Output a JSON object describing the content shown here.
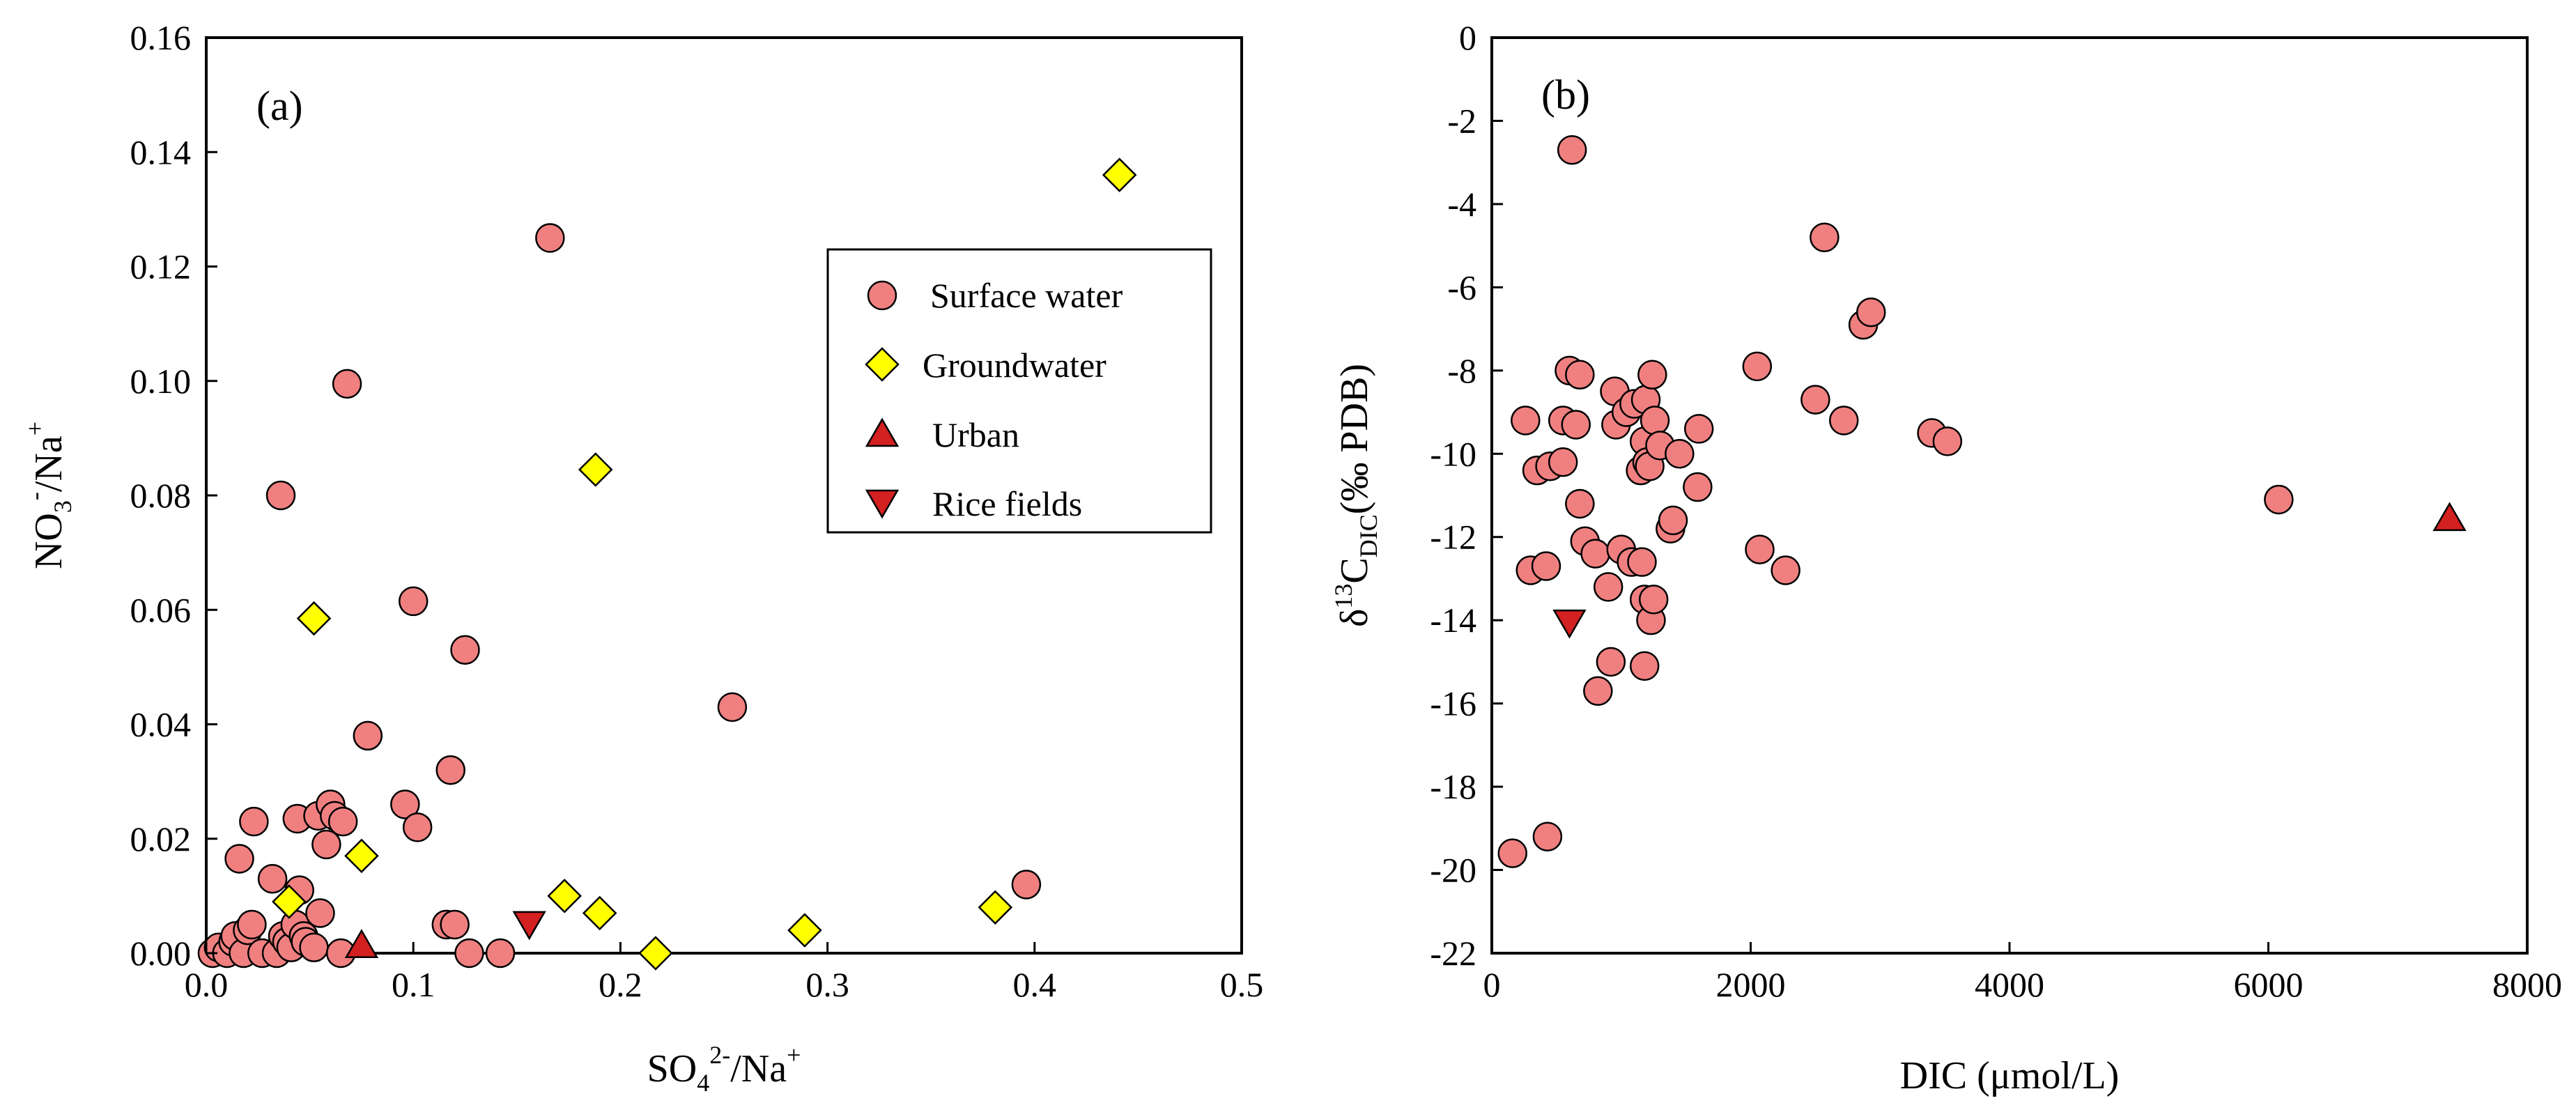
{
  "colors": {
    "surface": "#F08080",
    "groundwater": "#FFFF00",
    "urban": "#D32020",
    "rice": "#D32020",
    "stroke": "#000000"
  },
  "chart_data": [
    {
      "type": "scatter",
      "panel_label": "(a)",
      "xlabel": "SO₄²⁻/Na⁺",
      "ylabel": "NO₃⁻/Na⁺",
      "xlabel_parts": {
        "a": "SO",
        "b": "4",
        "c": "2-",
        "d": "/Na",
        "e": "+"
      },
      "ylabel_parts": {
        "a": "NO",
        "b": "3",
        "c": "-",
        "d": "/Na",
        "e": "+"
      },
      "xlim": [
        0,
        0.5
      ],
      "ylim": [
        0,
        0.16
      ],
      "x_ticks": [
        "0.0",
        "0.1",
        "0.2",
        "0.3",
        "0.4",
        "0.5"
      ],
      "y_ticks": [
        "0.00",
        "0.02",
        "0.04",
        "0.06",
        "0.08",
        "0.10",
        "0.12",
        "0.14",
        "0.16"
      ],
      "legend": {
        "placement": "upper-right",
        "entries": [
          {
            "label": "Surface water",
            "series": "surface",
            "marker": "circle"
          },
          {
            "label": "Groundwater",
            "series": "groundwater",
            "marker": "diamond"
          },
          {
            "label": "Urban",
            "series": "urban",
            "marker": "triangle-up"
          },
          {
            "label": "Rice fields",
            "series": "rice",
            "marker": "triangle-down"
          }
        ]
      },
      "series": [
        {
          "name": "Surface water",
          "key": "surface",
          "marker": "circle",
          "points": [
            [
              0.003,
              0.0
            ],
            [
              0.006,
              0.001
            ],
            [
              0.01,
              0.0
            ],
            [
              0.013,
              0.002
            ],
            [
              0.014,
              0.003
            ],
            [
              0.016,
              0.0165
            ],
            [
              0.018,
              0.0
            ],
            [
              0.02,
              0.004
            ],
            [
              0.022,
              0.005
            ],
            [
              0.023,
              0.023
            ],
            [
              0.027,
              0.0
            ],
            [
              0.032,
              0.013
            ],
            [
              0.034,
              0.0
            ],
            [
              0.036,
              0.08
            ],
            [
              0.037,
              0.003
            ],
            [
              0.039,
              0.002
            ],
            [
              0.041,
              0.001
            ],
            [
              0.043,
              0.005
            ],
            [
              0.044,
              0.0235
            ],
            [
              0.045,
              0.011
            ],
            [
              0.047,
              0.003
            ],
            [
              0.048,
              0.002
            ],
            [
              0.052,
              0.001
            ],
            [
              0.054,
              0.024
            ],
            [
              0.055,
              0.007
            ],
            [
              0.058,
              0.019
            ],
            [
              0.06,
              0.026
            ],
            [
              0.062,
              0.024
            ],
            [
              0.065,
              0.0
            ],
            [
              0.066,
              0.023
            ],
            [
              0.068,
              0.0995
            ],
            [
              0.078,
              0.038
            ],
            [
              0.096,
              0.026
            ],
            [
              0.1,
              0.0615
            ],
            [
              0.102,
              0.022
            ],
            [
              0.116,
              0.005
            ],
            [
              0.118,
              0.032
            ],
            [
              0.12,
              0.005
            ],
            [
              0.125,
              0.053
            ],
            [
              0.127,
              0.0
            ],
            [
              0.142,
              0.0
            ],
            [
              0.166,
              0.125
            ],
            [
              0.254,
              0.043
            ],
            [
              0.396,
              0.012
            ]
          ]
        },
        {
          "name": "Groundwater",
          "key": "groundwater",
          "marker": "diamond",
          "points": [
            [
              0.04,
              0.009
            ],
            [
              0.052,
              0.0585
            ],
            [
              0.075,
              0.017
            ],
            [
              0.173,
              0.01
            ],
            [
              0.188,
              0.0845
            ],
            [
              0.19,
              0.007
            ],
            [
              0.217,
              0.0
            ],
            [
              0.289,
              0.004
            ],
            [
              0.381,
              0.008
            ],
            [
              0.441,
              0.136
            ]
          ]
        },
        {
          "name": "Urban",
          "key": "urban",
          "marker": "triangle-up",
          "points": [
            [
              0.075,
              0.001
            ]
          ]
        },
        {
          "name": "Rice fields",
          "key": "rice",
          "marker": "triangle-down",
          "points": [
            [
              0.156,
              0.0055
            ]
          ]
        }
      ]
    },
    {
      "type": "scatter",
      "panel_label": "(b)",
      "xlabel": "DIC (μmol/L)",
      "ylabel": "δ¹³C_DIC(‰ PDB)",
      "ylabel_parts": {
        "a": "δ",
        "b": "13",
        "c": "C",
        "d": "DIC",
        "e": "(‰ PDB)"
      },
      "xlim": [
        0,
        8000
      ],
      "ylim": [
        -22,
        0
      ],
      "x_ticks": [
        "0",
        "2000",
        "4000",
        "6000",
        "8000"
      ],
      "y_ticks": [
        "-22",
        "-20",
        "-18",
        "-16",
        "-14",
        "-12",
        "-10",
        "-8",
        "-6",
        "-4",
        "-2",
        "0"
      ],
      "series": [
        {
          "name": "Surface water",
          "key": "surface",
          "marker": "circle",
          "points": [
            [
              160,
              -19.6
            ],
            [
              430,
              -19.2
            ],
            [
              260,
              -9.2
            ],
            [
              300,
              -12.8
            ],
            [
              350,
              -10.4
            ],
            [
              420,
              -12.7
            ],
            [
              450,
              -10.3
            ],
            [
              550,
              -9.2
            ],
            [
              550,
              -10.2
            ],
            [
              600,
              -8.0
            ],
            [
              620,
              -2.7
            ],
            [
              650,
              -9.3
            ],
            [
              680,
              -8.1
            ],
            [
              680,
              -11.2
            ],
            [
              720,
              -12.1
            ],
            [
              800,
              -12.4
            ],
            [
              820,
              -15.7
            ],
            [
              900,
              -13.2
            ],
            [
              920,
              -15.0
            ],
            [
              950,
              -8.5
            ],
            [
              960,
              -9.3
            ],
            [
              1000,
              -12.3
            ],
            [
              1040,
              -9.0
            ],
            [
              1080,
              -12.6
            ],
            [
              1100,
              -8.8
            ],
            [
              1150,
              -10.4
            ],
            [
              1160,
              -12.6
            ],
            [
              1180,
              -13.5
            ],
            [
              1180,
              -15.1
            ],
            [
              1180,
              -9.7
            ],
            [
              1190,
              -8.7
            ],
            [
              1200,
              -10.2
            ],
            [
              1220,
              -10.3
            ],
            [
              1230,
              -14.0
            ],
            [
              1240,
              -8.1
            ],
            [
              1250,
              -13.5
            ],
            [
              1260,
              -9.2
            ],
            [
              1300,
              -9.8
            ],
            [
              1380,
              -11.8
            ],
            [
              1400,
              -11.6
            ],
            [
              1450,
              -10.0
            ],
            [
              1590,
              -10.8
            ],
            [
              1600,
              -9.4
            ],
            [
              2050,
              -7.9
            ],
            [
              2070,
              -12.3
            ],
            [
              2270,
              -12.8
            ],
            [
              2500,
              -8.7
            ],
            [
              2570,
              -4.8
            ],
            [
              2720,
              -9.2
            ],
            [
              2870,
              -6.9
            ],
            [
              2930,
              -6.6
            ],
            [
              3400,
              -9.5
            ],
            [
              3520,
              -9.7
            ],
            [
              6080,
              -11.1
            ]
          ]
        },
        {
          "name": "Urban",
          "key": "urban",
          "marker": "triangle-up",
          "points": [
            [
              7400,
              -11.6
            ]
          ]
        },
        {
          "name": "Rice fields",
          "key": "rice",
          "marker": "triangle-down",
          "points": [
            [
              600,
              -14.0
            ]
          ]
        }
      ]
    }
  ]
}
